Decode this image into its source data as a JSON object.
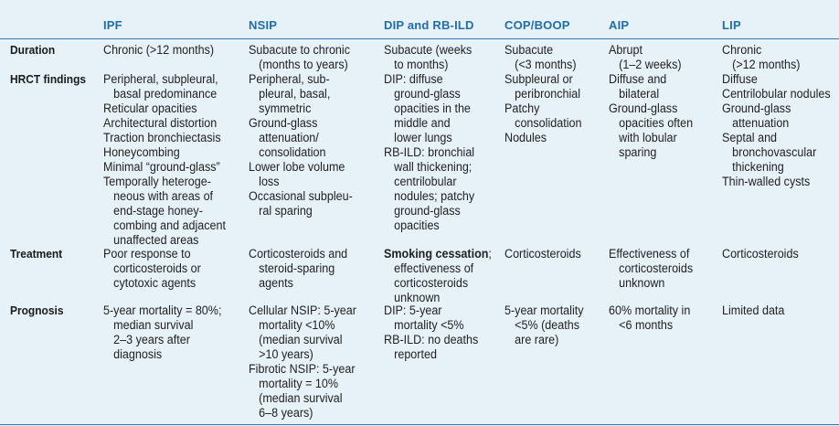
{
  "columns": [
    "IPF",
    "NSIP",
    "DIP and RB-ILD",
    "COP/BOOP",
    "AIP",
    "LIP"
  ],
  "rows": {
    "duration": "Duration",
    "hrct": "HRCT findings",
    "treatment": "Treatment",
    "prognosis": "Prognosis"
  },
  "cells": {
    "ipf": {
      "duration": [
        "Chronic (>12 months)"
      ],
      "hrct": [
        "Peripheral, subpleural,",
        "basal predominance",
        "Reticular opacities",
        "Architectural distortion",
        "Traction bronchiectasis",
        "Honeycombing",
        "Minimal “ground-glass”",
        "Temporally heteroge-",
        "neous with areas of",
        "end-stage honey-",
        "combing and adjacent",
        "unaffected areas"
      ],
      "treatment": [
        "Poor response to",
        "corticosteroids or",
        "cytotoxic agents"
      ],
      "prognosis": [
        "5-year mortality = 80%;",
        "median survival",
        "2–3 years after",
        "diagnosis"
      ]
    },
    "nsip": {
      "duration": [
        "Subacute to chronic",
        "(months to years)"
      ],
      "hrct": [
        "Peripheral, sub-",
        "pleural, basal,",
        "symmetric",
        "Ground-glass",
        "attenuation/",
        "consolidation",
        "Lower lobe volume",
        "loss",
        "Occasional subpleu-",
        "ral sparing"
      ],
      "treatment": [
        "Corticosteroids and",
        "steroid-sparing",
        "agents"
      ],
      "prognosis": [
        "Cellular NSIP: 5-year",
        "mortality <10%",
        "(median survival",
        ">10 years)",
        "Fibrotic NSIP: 5-year",
        "mortality = 10%",
        "(median survival",
        "6–8 years)"
      ]
    },
    "dip": {
      "duration": [
        "Subacute (weeks",
        "to months)"
      ],
      "hrct": [
        "DIP: diffuse",
        "ground-glass",
        "opacities in the",
        "middle and",
        "lower lungs",
        "RB-ILD: bronchial",
        "wall thickening;",
        "centrilobular",
        "nodules; patchy",
        "ground-glass",
        "opacities"
      ],
      "treatment_bold": "Smoking cessation",
      "treatment": [
        ";",
        "effectiveness of",
        "corticosteroids",
        "unknown"
      ],
      "prognosis": [
        "DIP: 5-year",
        "mortality <5%",
        "RB-ILD: no deaths",
        "reported"
      ]
    },
    "cop": {
      "duration": [
        "Subacute",
        "(<3 months)"
      ],
      "hrct": [
        "Subpleural or",
        "peribronchial",
        "Patchy",
        "consolidation",
        "Nodules"
      ],
      "treatment": [
        "Corticosteroids"
      ],
      "prognosis": [
        "5-year mortality",
        "<5% (deaths",
        "are rare)"
      ]
    },
    "aip": {
      "duration": [
        "Abrupt",
        "(1–2 weeks)"
      ],
      "hrct": [
        "Diffuse and",
        "bilateral",
        "Ground-glass",
        "opacities often",
        "with lobular",
        "sparing"
      ],
      "treatment": [
        "Effectiveness of",
        "corticosteroids",
        "unknown"
      ],
      "prognosis": [
        "60% mortality in",
        "<6 months"
      ]
    },
    "lip": {
      "duration": [
        "Chronic",
        "(>12 months)"
      ],
      "hrct": [
        "Diffuse",
        "Centrilobular nodules",
        "Ground-glass",
        "attenuation",
        "Septal and",
        "bronchovascular",
        "thickening",
        "Thin-walled cysts"
      ],
      "treatment": [
        "Corticosteroids"
      ],
      "prognosis": [
        "Limited data"
      ]
    }
  },
  "colors": {
    "header_bg": "#e6f1f8",
    "header_text": "#1f6ea8",
    "rule": "#2c7ab0"
  }
}
